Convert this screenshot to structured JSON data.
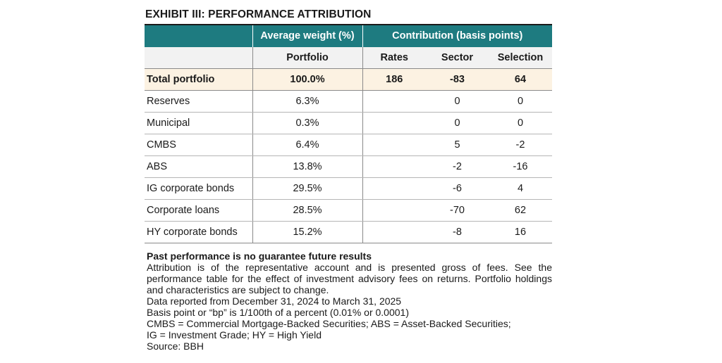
{
  "title": "EXHIBIT III: PERFORMANCE ATTRIBUTION",
  "header": {
    "avg_weight": "Average weight (%)",
    "contribution": "Contribution (basis points)",
    "portfolio": "Portfolio",
    "rates": "Rates",
    "sector": "Sector",
    "selection": "Selection"
  },
  "total": {
    "label": "Total portfolio",
    "weight": "100.0%",
    "rates": "186",
    "sector": "-83",
    "selection": "64"
  },
  "rows": [
    {
      "label": "Reserves",
      "weight": "6.3%",
      "rates": "",
      "sector": "0",
      "selection": "0"
    },
    {
      "label": "Municipal",
      "weight": "0.3%",
      "rates": "",
      "sector": "0",
      "selection": "0"
    },
    {
      "label": "CMBS",
      "weight": "6.4%",
      "rates": "",
      "sector": "5",
      "selection": "-2"
    },
    {
      "label": "ABS",
      "weight": "13.8%",
      "rates": "",
      "sector": "-2",
      "selection": "-16"
    },
    {
      "label": "IG corporate bonds",
      "weight": "29.5%",
      "rates": "",
      "sector": "-6",
      "selection": "4"
    },
    {
      "label": "Corporate loans",
      "weight": "28.5%",
      "rates": "",
      "sector": "-70",
      "selection": "62"
    },
    {
      "label": "HY corporate bonds",
      "weight": "15.2%",
      "rates": "",
      "sector": "-8",
      "selection": "16"
    }
  ],
  "notes": {
    "disclaimer": "Past performance is no guarantee future results",
    "attribution": "Attribution is of the representative account and is presented gross of fees. See the performance table for the effect of investment advisory fees on returns. Portfolio holdings and characteristics are subject to change.",
    "period": "Data reported from December 31, 2024 to March 31, 2025",
    "bp_def": "Basis point or “bp” is 1/100th of a percent (0.01% or 0.0001)",
    "abbr1": "CMBS = Commercial Mortgage-Backed Securities; ABS = Asset-Backed Securities;",
    "abbr2": "IG = Investment Grade; HY = High Yield",
    "source": "Source: BBH"
  }
}
